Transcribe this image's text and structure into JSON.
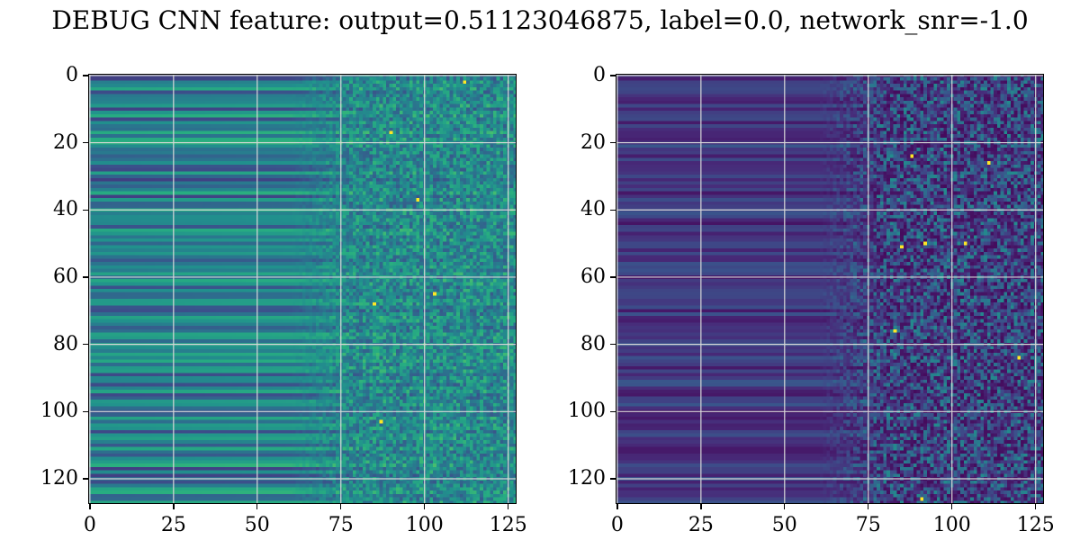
{
  "title": "DEBUG CNN feature: output=0.51123046875, label=0.0, network_snr=-1.0",
  "chart_data": [
    {
      "type": "heatmap",
      "colormap": "viridis",
      "shape": [
        128,
        128
      ],
      "xlim": [
        -0.5,
        127.5
      ],
      "ylim": [
        127.5,
        -0.5
      ],
      "x_ticks": [
        0,
        25,
        50,
        75,
        100,
        125
      ],
      "y_ticks": [
        0,
        20,
        40,
        60,
        80,
        100,
        120
      ],
      "grid": true,
      "value_range": [
        0,
        1
      ],
      "description": "smooth horizontal bands for columns 0-70, noisy speckled values for columns 75-127",
      "background_level": 0.35,
      "hot_pixels": [
        [
          87,
          103
        ],
        [
          112,
          2
        ],
        [
          103,
          65
        ],
        [
          85,
          68
        ],
        [
          98,
          37
        ],
        [
          90,
          17
        ]
      ]
    },
    {
      "type": "heatmap",
      "colormap": "viridis",
      "shape": [
        128,
        128
      ],
      "xlim": [
        -0.5,
        127.5
      ],
      "ylim": [
        127.5,
        -0.5
      ],
      "x_ticks": [
        0,
        25,
        50,
        75,
        100,
        125
      ],
      "y_ticks": [
        0,
        20,
        40,
        60,
        80,
        100,
        120
      ],
      "grid": true,
      "value_range": [
        0,
        1
      ],
      "description": "dark purple horizontal bands for columns 0-70, noisy speckled values for columns 75-127",
      "background_level": 0.12,
      "hot_pixels": [
        [
          111,
          26
        ],
        [
          92,
          50
        ],
        [
          85,
          51
        ],
        [
          104,
          50
        ],
        [
          88,
          24
        ],
        [
          120,
          84
        ],
        [
          83,
          76
        ],
        [
          91,
          126
        ]
      ]
    }
  ]
}
